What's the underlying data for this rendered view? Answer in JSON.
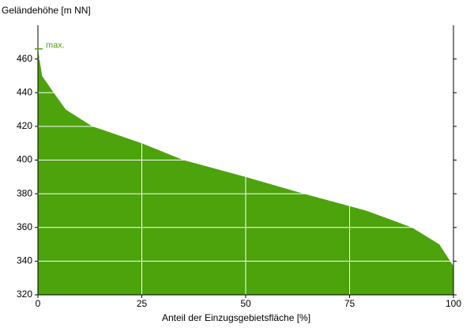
{
  "chart_data": {
    "type": "area",
    "y_label": "Geländehöhe [m NN]",
    "x_label": "Anteil der Einzugsgebietsfläche [%]",
    "x": [
      0,
      1,
      3.8,
      6.7,
      13.1,
      25,
      35,
      50,
      64,
      79,
      90,
      96.6,
      100
    ],
    "series": [
      {
        "name": "Geländehöhe",
        "color": "#4ca30c",
        "values": [
          466,
          450,
          440,
          430,
          420,
          410,
          400,
          390,
          380,
          370,
          360,
          350,
          337
        ]
      }
    ],
    "annotation": {
      "text": "max.",
      "value": 466
    },
    "xlim": [
      0,
      100
    ],
    "xticks": [
      0,
      25,
      50,
      75,
      100
    ],
    "ylim": [
      320,
      480
    ],
    "yticks": [
      320,
      340,
      360,
      380,
      400,
      420,
      440,
      460
    ],
    "grid": true
  }
}
